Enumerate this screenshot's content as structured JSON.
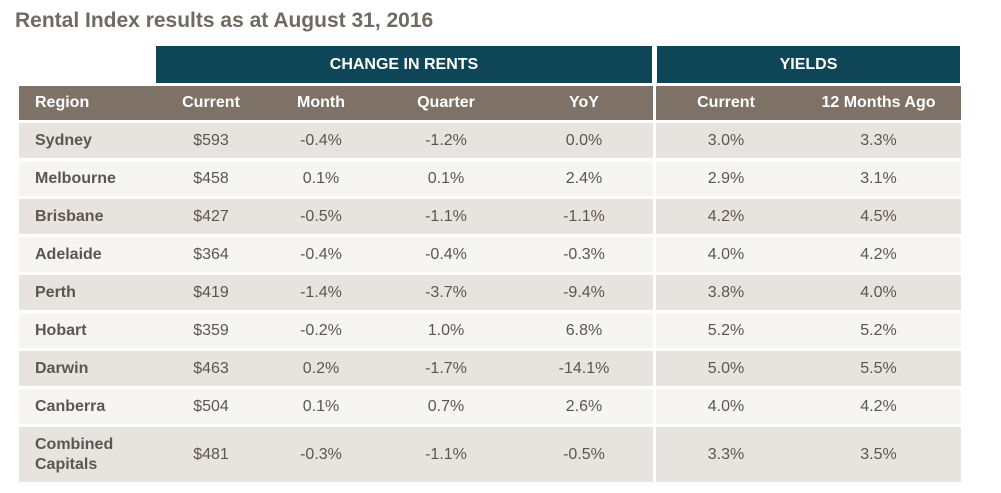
{
  "title": "Rental Index results as at August 31, 2016",
  "bands": {
    "rents": "CHANGE IN RENTS",
    "yields": "YIELDS"
  },
  "columns": [
    "Region",
    "Current",
    "Month",
    "Quarter",
    "YoY",
    "Current",
    "12 Months Ago"
  ],
  "rows": [
    {
      "region": "Sydney",
      "current": "$593",
      "month": "-0.4%",
      "quarter": "-1.2%",
      "yoy": "0.0%",
      "yield_current": "3.0%",
      "yield_12m": "3.3%"
    },
    {
      "region": "Melbourne",
      "current": "$458",
      "month": "0.1%",
      "quarter": "0.1%",
      "yoy": "2.4%",
      "yield_current": "2.9%",
      "yield_12m": "3.1%"
    },
    {
      "region": "Brisbane",
      "current": "$427",
      "month": "-0.5%",
      "quarter": "-1.1%",
      "yoy": "-1.1%",
      "yield_current": "4.2%",
      "yield_12m": "4.5%"
    },
    {
      "region": "Adelaide",
      "current": "$364",
      "month": "-0.4%",
      "quarter": "-0.4%",
      "yoy": "-0.3%",
      "yield_current": "4.0%",
      "yield_12m": "4.2%"
    },
    {
      "region": "Perth",
      "current": "$419",
      "month": "-1.4%",
      "quarter": "-3.7%",
      "yoy": "-9.4%",
      "yield_current": "3.8%",
      "yield_12m": "4.0%"
    },
    {
      "region": "Hobart",
      "current": "$359",
      "month": "-0.2%",
      "quarter": "1.0%",
      "yoy": "6.8%",
      "yield_current": "5.2%",
      "yield_12m": "5.2%"
    },
    {
      "region": "Darwin",
      "current": "$463",
      "month": "0.2%",
      "quarter": "-1.7%",
      "yoy": "-14.1%",
      "yield_current": "5.0%",
      "yield_12m": "5.5%"
    },
    {
      "region": "Canberra",
      "current": "$504",
      "month": "0.1%",
      "quarter": "0.7%",
      "yoy": "2.6%",
      "yield_current": "4.0%",
      "yield_12m": "4.2%"
    },
    {
      "region": "Combined Capitals",
      "current": "$481",
      "month": "-0.3%",
      "quarter": "-1.1%",
      "yoy": "-0.5%",
      "yield_current": "3.3%",
      "yield_12m": "3.5%"
    }
  ]
}
